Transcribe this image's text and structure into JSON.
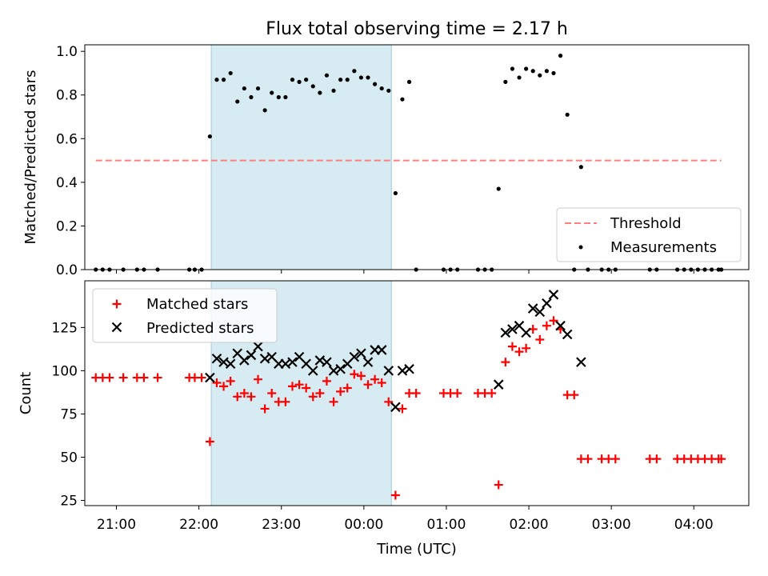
{
  "chart_data": [
    {
      "type": "scatter",
      "title": "Flux total observing time = 2.17 h",
      "ylabel": "Matched/Predicted stars",
      "xlabel": "",
      "xlim": [
        "20:37",
        "04:40"
      ],
      "ylim": [
        0,
        1.03
      ],
      "yticks": [
        "0.0",
        "0.2",
        "0.4",
        "0.6",
        "0.8",
        "1.0"
      ],
      "yticks_values": [
        0,
        0.2,
        0.4,
        0.6,
        0.8,
        1.0
      ],
      "legend": {
        "placement": "bottom-right",
        "entries": [
          "Threshold",
          "Measurements"
        ]
      },
      "shaded_interval": [
        "22:09",
        "00:20"
      ],
      "threshold": {
        "name": "Threshold",
        "value": 0.5,
        "x_range": [
          "20:45",
          "04:20"
        ],
        "color": "#ff7f7f"
      },
      "series": [
        {
          "name": "Measurements",
          "color": "#000000",
          "points": [
            [
              "20:45",
              0
            ],
            [
              "20:50",
              0
            ],
            [
              "20:55",
              0
            ],
            [
              "21:05",
              0
            ],
            [
              "21:15",
              0
            ],
            [
              "21:20",
              0
            ],
            [
              "21:30",
              0
            ],
            [
              "21:53",
              0
            ],
            [
              "21:57",
              0
            ],
            [
              "22:02",
              0
            ],
            [
              "22:08",
              0.61
            ],
            [
              "22:13",
              0.87
            ],
            [
              "22:18",
              0.87
            ],
            [
              "22:23",
              0.9
            ],
            [
              "22:28",
              0.77
            ],
            [
              "22:33",
              0.83
            ],
            [
              "22:38",
              0.79
            ],
            [
              "22:43",
              0.83
            ],
            [
              "22:48",
              0.73
            ],
            [
              "22:53",
              0.81
            ],
            [
              "22:58",
              0.79
            ],
            [
              "23:03",
              0.79
            ],
            [
              "23:08",
              0.87
            ],
            [
              "23:13",
              0.86
            ],
            [
              "23:18",
              0.87
            ],
            [
              "23:23",
              0.84
            ],
            [
              "23:28",
              0.81
            ],
            [
              "23:33",
              0.89
            ],
            [
              "23:38",
              0.82
            ],
            [
              "23:43",
              0.87
            ],
            [
              "23:48",
              0.87
            ],
            [
              "23:53",
              0.91
            ],
            [
              "23:58",
              0.88
            ],
            [
              "00:03",
              0.88
            ],
            [
              "00:08",
              0.85
            ],
            [
              "00:13",
              0.83
            ],
            [
              "00:18",
              0.82
            ],
            [
              "00:23",
              0.35
            ],
            [
              "00:28",
              0.78
            ],
            [
              "00:33",
              0.86
            ],
            [
              "00:38",
              0
            ],
            [
              "00:58",
              0
            ],
            [
              "01:03",
              0
            ],
            [
              "01:08",
              0
            ],
            [
              "01:23",
              0
            ],
            [
              "01:28",
              0
            ],
            [
              "01:33",
              0
            ],
            [
              "01:38",
              0.37
            ],
            [
              "01:43",
              0.86
            ],
            [
              "01:48",
              0.92
            ],
            [
              "01:53",
              0.88
            ],
            [
              "01:58",
              0.92
            ],
            [
              "02:03",
              0.91
            ],
            [
              "02:08",
              0.89
            ],
            [
              "02:13",
              0.91
            ],
            [
              "02:18",
              0.9
            ],
            [
              "02:23",
              0.98
            ],
            [
              "02:28",
              0.71
            ],
            [
              "02:33",
              0
            ],
            [
              "02:38",
              0.47
            ],
            [
              "02:43",
              0
            ],
            [
              "02:53",
              0
            ],
            [
              "02:58",
              0
            ],
            [
              "03:03",
              0
            ],
            [
              "03:28",
              0
            ],
            [
              "03:33",
              0
            ],
            [
              "03:48",
              0
            ],
            [
              "03:53",
              0
            ],
            [
              "03:58",
              0
            ],
            [
              "04:03",
              0
            ],
            [
              "04:08",
              0
            ],
            [
              "04:13",
              0
            ],
            [
              "04:18",
              0
            ],
            [
              "04:20",
              0
            ]
          ]
        }
      ]
    },
    {
      "type": "scatter",
      "title": "",
      "ylabel": "Count",
      "xlabel": "Time (UTC)",
      "xlim": [
        "20:37",
        "04:40"
      ],
      "ylim": [
        22,
        152
      ],
      "xticks": [
        "21:00",
        "22:00",
        "23:00",
        "00:00",
        "01:00",
        "02:00",
        "03:00",
        "04:00"
      ],
      "yticks": [
        "25",
        "50",
        "75",
        "100",
        "125"
      ],
      "yticks_values": [
        25,
        50,
        75,
        100,
        125
      ],
      "legend": {
        "placement": "top-left",
        "entries": [
          "Matched stars",
          "Predicted stars"
        ]
      },
      "shaded_interval": [
        "22:09",
        "00:20"
      ],
      "series": [
        {
          "name": "Matched stars",
          "marker": "plus",
          "color": "#ff0000",
          "points": [
            [
              "20:45",
              96
            ],
            [
              "20:50",
              96
            ],
            [
              "20:55",
              96
            ],
            [
              "21:05",
              96
            ],
            [
              "21:15",
              96
            ],
            [
              "21:20",
              96
            ],
            [
              "21:30",
              96
            ],
            [
              "21:53",
              96
            ],
            [
              "21:57",
              96
            ],
            [
              "22:02",
              96
            ],
            [
              "22:08",
              59
            ],
            [
              "22:13",
              93
            ],
            [
              "22:18",
              91
            ],
            [
              "22:23",
              94
            ],
            [
              "22:28",
              85
            ],
            [
              "22:33",
              87
            ],
            [
              "22:38",
              85
            ],
            [
              "22:43",
              95
            ],
            [
              "22:48",
              78
            ],
            [
              "22:53",
              87
            ],
            [
              "22:58",
              82
            ],
            [
              "23:03",
              82
            ],
            [
              "23:08",
              91
            ],
            [
              "23:13",
              92
            ],
            [
              "23:18",
              90
            ],
            [
              "23:23",
              85
            ],
            [
              "23:28",
              87
            ],
            [
              "23:33",
              94
            ],
            [
              "23:38",
              82
            ],
            [
              "23:43",
              88
            ],
            [
              "23:48",
              90
            ],
            [
              "23:53",
              98
            ],
            [
              "23:58",
              97
            ],
            [
              "00:03",
              92
            ],
            [
              "00:08",
              95
            ],
            [
              "00:13",
              93
            ],
            [
              "00:18",
              82
            ],
            [
              "00:23",
              28
            ],
            [
              "00:28",
              78
            ],
            [
              "00:33",
              87
            ],
            [
              "00:38",
              87
            ],
            [
              "00:58",
              87
            ],
            [
              "01:03",
              87
            ],
            [
              "01:08",
              87
            ],
            [
              "01:23",
              87
            ],
            [
              "01:28",
              87
            ],
            [
              "01:33",
              87
            ],
            [
              "01:38",
              34
            ],
            [
              "01:43",
              105
            ],
            [
              "01:48",
              114
            ],
            [
              "01:53",
              111
            ],
            [
              "01:58",
              113
            ],
            [
              "02:03",
              124
            ],
            [
              "02:08",
              118
            ],
            [
              "02:13",
              126
            ],
            [
              "02:18",
              129
            ],
            [
              "02:23",
              124
            ],
            [
              "02:28",
              86
            ],
            [
              "02:33",
              86
            ],
            [
              "02:38",
              49
            ],
            [
              "02:43",
              49
            ],
            [
              "02:53",
              49
            ],
            [
              "02:58",
              49
            ],
            [
              "03:03",
              49
            ],
            [
              "03:28",
              49
            ],
            [
              "03:33",
              49
            ],
            [
              "03:48",
              49
            ],
            [
              "03:53",
              49
            ],
            [
              "03:58",
              49
            ],
            [
              "04:03",
              49
            ],
            [
              "04:08",
              49
            ],
            [
              "04:13",
              49
            ],
            [
              "04:18",
              49
            ],
            [
              "04:20",
              49
            ]
          ]
        },
        {
          "name": "Predicted stars",
          "marker": "x",
          "color": "#000000",
          "points": [
            [
              "22:08",
              96
            ],
            [
              "22:13",
              107
            ],
            [
              "22:18",
              105
            ],
            [
              "22:23",
              104
            ],
            [
              "22:28",
              110
            ],
            [
              "22:33",
              106
            ],
            [
              "22:38",
              109
            ],
            [
              "22:43",
              114
            ],
            [
              "22:48",
              107
            ],
            [
              "22:53",
              108
            ],
            [
              "22:58",
              104
            ],
            [
              "23:03",
              104
            ],
            [
              "23:08",
              105
            ],
            [
              "23:13",
              108
            ],
            [
              "23:18",
              104
            ],
            [
              "23:23",
              100
            ],
            [
              "23:28",
              106
            ],
            [
              "23:33",
              105
            ],
            [
              "23:38",
              100
            ],
            [
              "23:43",
              101
            ],
            [
              "23:48",
              104
            ],
            [
              "23:53",
              108
            ],
            [
              "23:58",
              110
            ],
            [
              "00:03",
              105
            ],
            [
              "00:08",
              112
            ],
            [
              "00:13",
              112
            ],
            [
              "00:18",
              100
            ],
            [
              "00:23",
              79
            ],
            [
              "00:28",
              100
            ],
            [
              "00:33",
              101
            ],
            [
              "01:38",
              92
            ],
            [
              "01:43",
              122
            ],
            [
              "01:48",
              124
            ],
            [
              "01:53",
              126
            ],
            [
              "01:58",
              122
            ],
            [
              "02:03",
              136
            ],
            [
              "02:08",
              134
            ],
            [
              "02:13",
              139
            ],
            [
              "02:18",
              144
            ],
            [
              "02:23",
              126
            ],
            [
              "02:28",
              121
            ],
            [
              "02:38",
              105
            ]
          ]
        }
      ]
    }
  ]
}
